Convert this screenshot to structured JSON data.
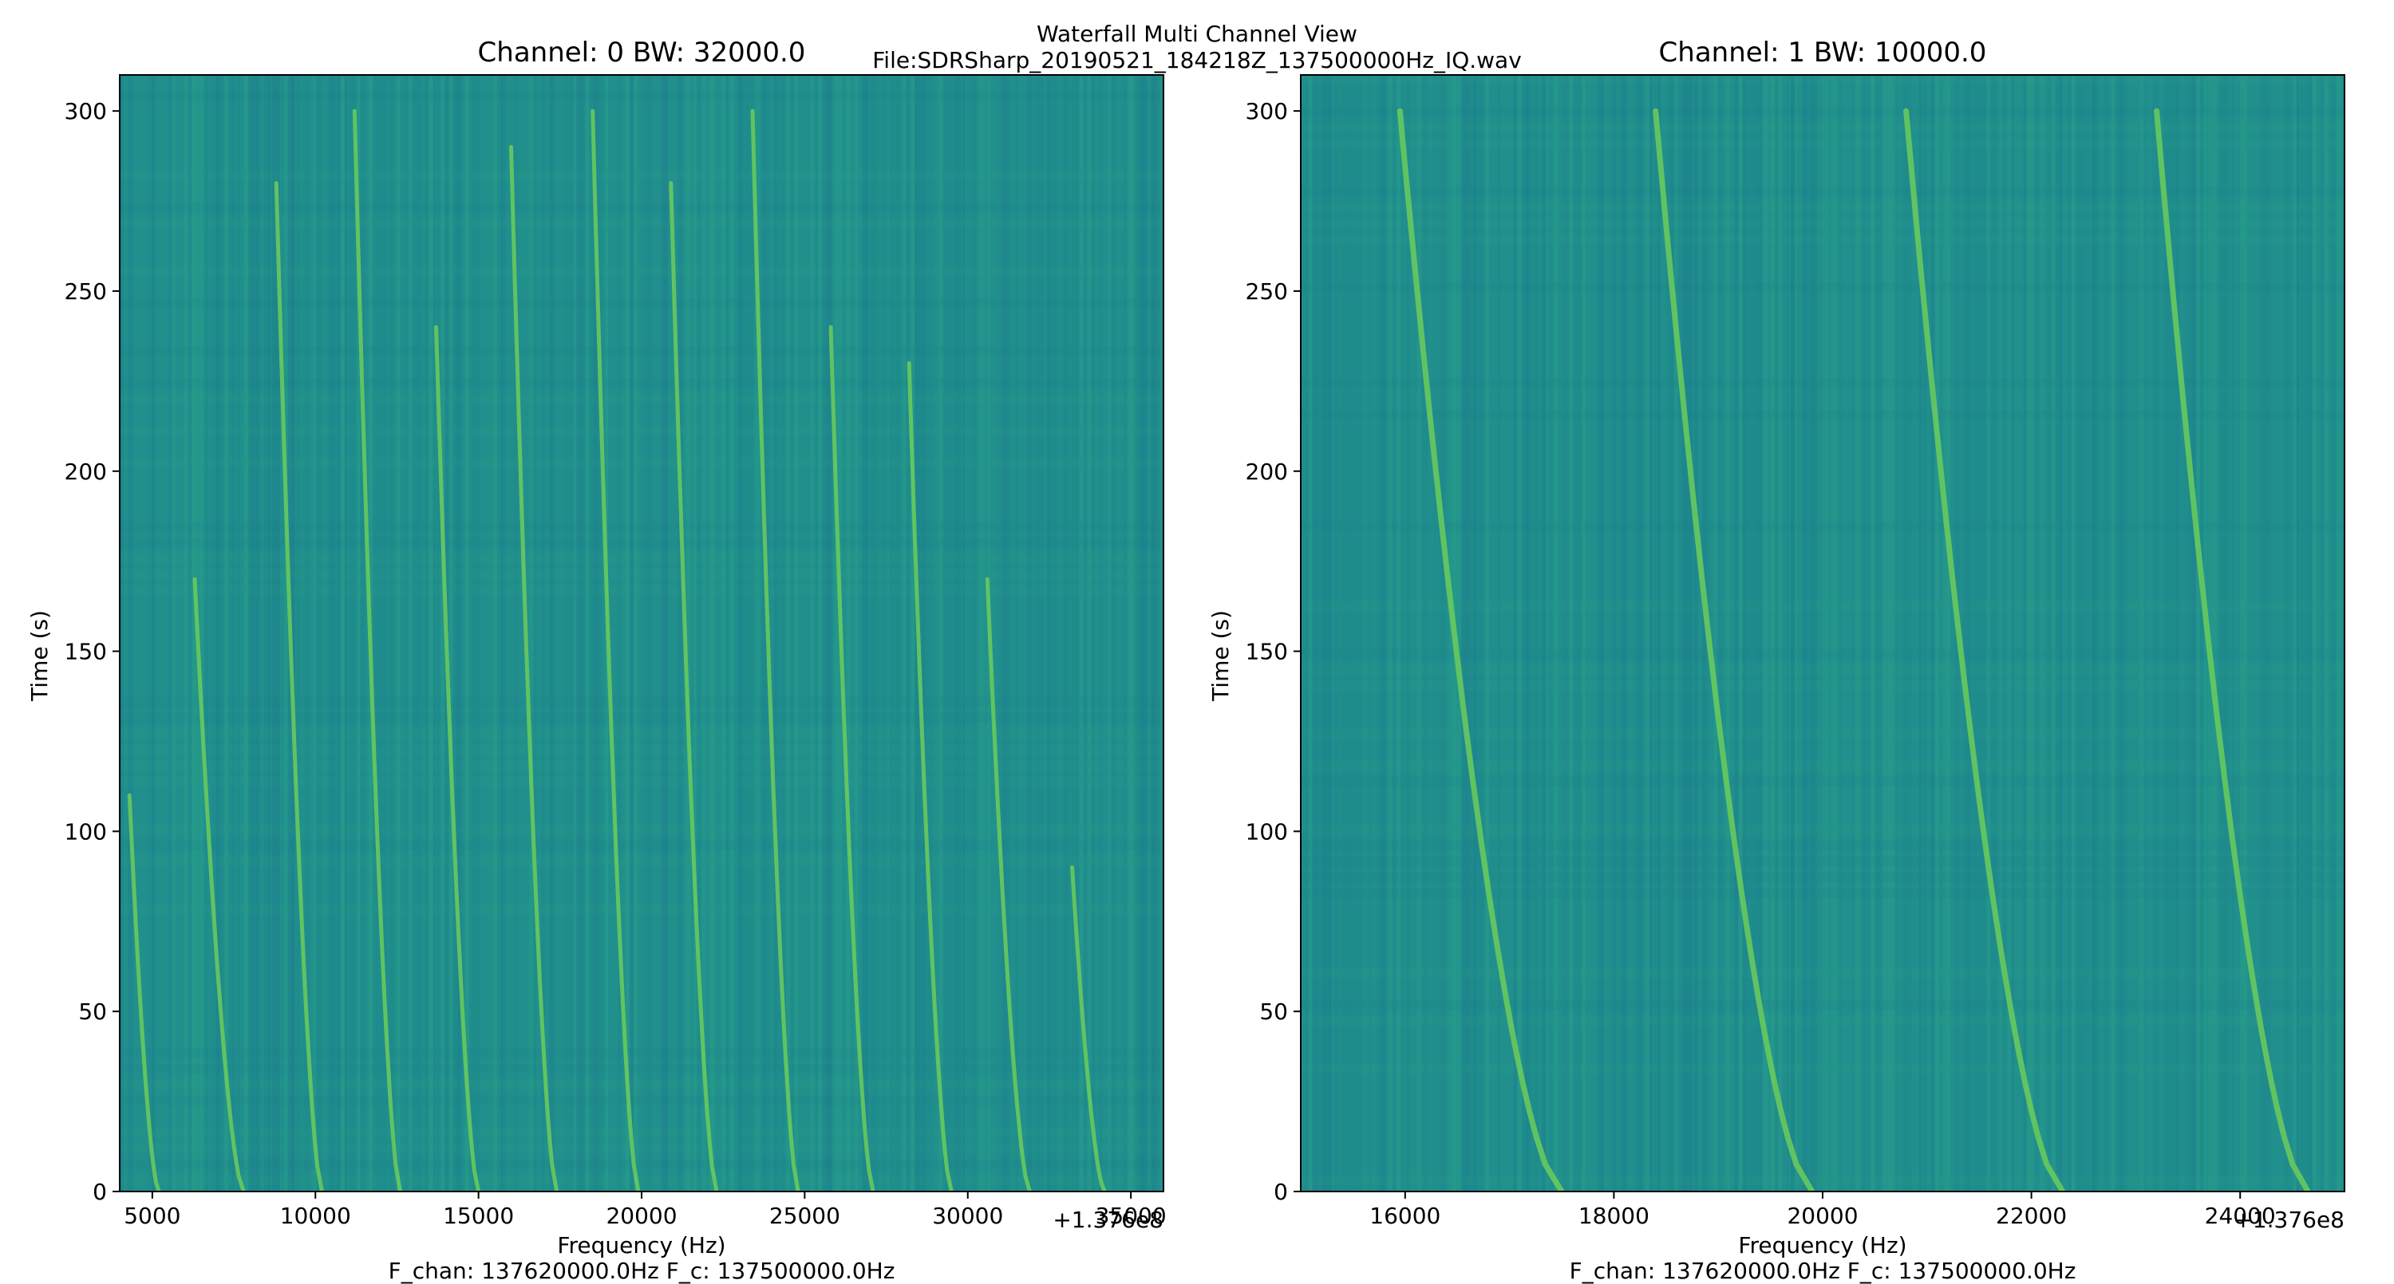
{
  "figure": {
    "title_line1": "Waterfall Multi Channel View",
    "title_line2": "File:SDRSharp_20190521_184218Z_137500000Hz_IQ.wav"
  },
  "colors": {
    "background": "#21908d",
    "signal": "#6ccd5a",
    "frame": "#000000"
  },
  "chart_data": [
    {
      "type": "heatmap",
      "colormap": "viridis",
      "title": "Channel: 0 BW: 32000.0",
      "xlabel": "Frequency (Hz)",
      "ylabel": "Time (s)",
      "x_offset_label": "+1.376e8",
      "footer": "F_chan: 137620000.0Hz F_c: 137500000.0Hz",
      "xlim": [
        4000,
        36000
      ],
      "ylim": [
        0,
        310
      ],
      "xticks": [
        5000,
        10000,
        15000,
        20000,
        25000,
        30000,
        35000
      ],
      "yticks": [
        0,
        50,
        100,
        150,
        200,
        250,
        300
      ],
      "traces": [
        {
          "f_bottom": 7800,
          "f_top": 6300,
          "t_top": 170
        },
        {
          "f_bottom": 10200,
          "f_top": 8800,
          "t_top": 280
        },
        {
          "f_bottom": 12600,
          "f_top": 11200,
          "t_top": 300
        },
        {
          "f_bottom": 15000,
          "f_top": 13700,
          "t_top": 240
        },
        {
          "f_bottom": 17400,
          "f_top": 16000,
          "t_top": 290
        },
        {
          "f_bottom": 19900,
          "f_top": 18500,
          "t_top": 300
        },
        {
          "f_bottom": 22300,
          "f_top": 20900,
          "t_top": 280
        },
        {
          "f_bottom": 24800,
          "f_top": 23400,
          "t_top": 300
        },
        {
          "f_bottom": 27100,
          "f_top": 25800,
          "t_top": 240
        },
        {
          "f_bottom": 29500,
          "f_top": 28200,
          "t_top": 230
        },
        {
          "f_bottom": 31900,
          "f_top": 30600,
          "t_top": 170
        },
        {
          "f_bottom": 34200,
          "f_top": 33200,
          "t_top": 90
        },
        {
          "f_bottom": 5200,
          "f_top": 4300,
          "t_top": 110
        }
      ]
    },
    {
      "type": "heatmap",
      "colormap": "viridis",
      "title": "Channel: 1 BW: 10000.0",
      "xlabel": "Frequency (Hz)",
      "ylabel": "Time (s)",
      "x_offset_label": "+1.376e8",
      "footer": "F_chan: 137620000.0Hz F_c: 137500000.0Hz",
      "xlim": [
        15000,
        25000
      ],
      "ylim": [
        0,
        310
      ],
      "xticks": [
        16000,
        18000,
        20000,
        22000,
        24000
      ],
      "yticks": [
        0,
        50,
        100,
        150,
        200,
        250,
        300
      ],
      "traces": [
        {
          "f_bottom": 17500,
          "f_top": 15950,
          "t_top": 300
        },
        {
          "f_bottom": 19900,
          "f_top": 18400,
          "t_top": 300
        },
        {
          "f_bottom": 22300,
          "f_top": 20800,
          "t_top": 300
        },
        {
          "f_bottom": 24650,
          "f_top": 23200,
          "t_top": 300
        }
      ]
    }
  ]
}
